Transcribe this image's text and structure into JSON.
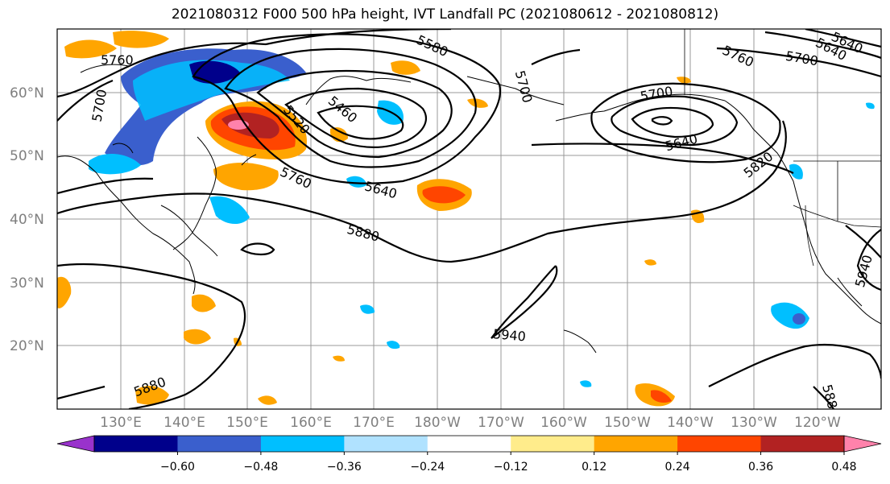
{
  "title": "2021080312 F000 500 hPa height, IVT Landfall PC (2021080612 - 2021080812)",
  "lat_labels": [
    "60°N",
    "50°N",
    "40°N",
    "30°N",
    "20°N"
  ],
  "lon_labels": [
    "130°E",
    "140°E",
    "150°E",
    "160°E",
    "170°E",
    "180°W",
    "170°W",
    "160°W",
    "150°W",
    "140°W",
    "130°W",
    "120°W"
  ],
  "contour_labels": [
    "5760",
    "5700",
    "5580",
    "5700",
    "5760",
    "5700",
    "5640",
    "5520",
    "5460",
    "5640",
    "5700",
    "5640",
    "5820",
    "5760",
    "5640",
    "5880",
    "5940",
    "5880",
    "5940",
    "588"
  ],
  "colorbar": {
    "ticks": [
      "−0.60",
      "−0.48",
      "−0.36",
      "−0.24",
      "−0.12",
      "0.12",
      "0.24",
      "0.36",
      "0.48",
      "0.60"
    ],
    "colors": [
      "#9932cc",
      "#00008b",
      "#3a5fcd",
      "#00bfff",
      "#b0e2ff",
      "#ffffff",
      "#ffec8b",
      "#ffa500",
      "#ff4500",
      "#b22222",
      "#ff82ab"
    ]
  }
}
